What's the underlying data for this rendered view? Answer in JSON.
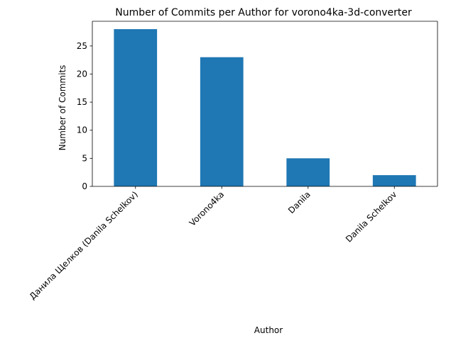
{
  "chart_data": {
    "type": "bar",
    "title": "Number of Commits per Author for vorono4ka-3d-converter",
    "xlabel": "Author",
    "ylabel": "Number of Commits",
    "categories": [
      "Данила Щелков (Danila Schelkov)",
      "Vorono4ka",
      "Danila",
      "Danila Schelkov"
    ],
    "values": [
      28,
      23,
      5,
      2
    ],
    "ylim": [
      0,
      29.4
    ],
    "yticks": [
      0,
      5,
      10,
      15,
      20,
      25
    ],
    "bar_color": "#1f77b4",
    "grid": false,
    "legend": false
  }
}
